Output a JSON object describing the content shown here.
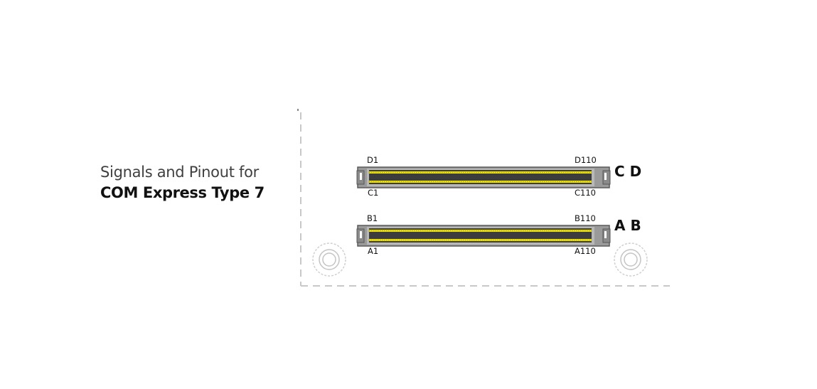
{
  "title": {
    "line1": "Signals and Pinout for",
    "line2": "COM Express Type 7"
  },
  "connectors": {
    "cd": {
      "row_label": "C D",
      "top_left": "D1",
      "top_right": "D110",
      "bottom_left": "C1",
      "bottom_right": "C110"
    },
    "ab": {
      "row_label": "A B",
      "top_left": "B1",
      "top_right": "B110",
      "bottom_left": "A1",
      "bottom_right": "A110"
    }
  },
  "colors": {
    "pin_stripe": "#f2e600",
    "connector_body": "#9a9a9a",
    "connector_core": "#3c3c3c",
    "board_outline": "#c8c8c8"
  }
}
